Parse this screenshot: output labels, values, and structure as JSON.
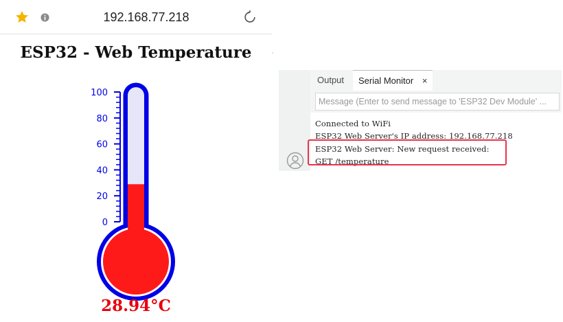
{
  "browser": {
    "url": "192.168.77.218",
    "page_title": "ESP32 - Web Temperature",
    "icons": {
      "bookmark": "star-icon",
      "site_info": "info-icon",
      "reload": "reload-icon"
    },
    "colors": {
      "star": "#f5b400"
    }
  },
  "thermometer": {
    "scale_labels": [
      "100",
      "80",
      "60",
      "40",
      "20",
      "0"
    ],
    "scale_min": 0,
    "scale_max": 100,
    "temperature_c": 28.94,
    "temperature_label": "28.94°C",
    "colors": {
      "outline": "#0000e6",
      "mercury": "#ff1a1a",
      "tube_fill": "#e6e6f8",
      "reading": "#e8000b"
    }
  },
  "ide": {
    "tabs": [
      {
        "label": "Output"
      },
      {
        "label": "Serial Monitor"
      }
    ],
    "close_symbol": "×",
    "message_placeholder": "Message (Enter to send message to 'ESP32 Dev Module' ...",
    "console_lines": [
      "Connected to WiFi",
      "ESP32 Web Server's IP address: 192.168.77.218",
      "ESP32 Web Server: New request received:",
      "GET /temperature"
    ],
    "highlight_color": "#e8334a",
    "icons": {
      "user": "user-icon"
    }
  }
}
